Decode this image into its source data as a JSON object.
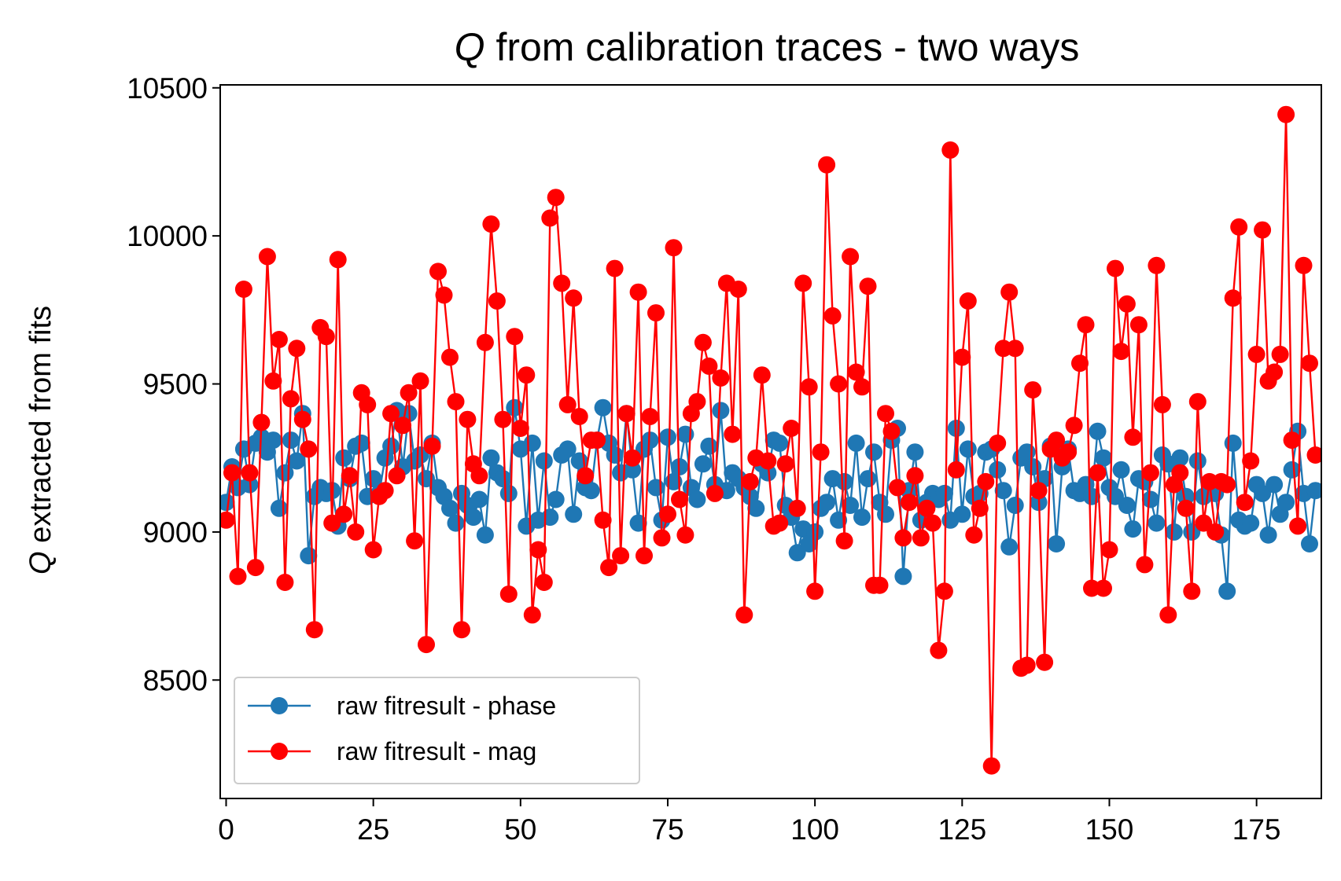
{
  "chart_data": {
    "type": "line",
    "title_var": "Q",
    "title": " from calibration traces - two ways",
    "ylabel_var": "Q",
    "ylabel": " extracted from fits",
    "xlabel": "",
    "xlim": [
      -1,
      186
    ],
    "ylim": [
      8100,
      10510
    ],
    "xticks": [
      0,
      25,
      50,
      75,
      100,
      125,
      150,
      175
    ],
    "yticks": [
      8500,
      9000,
      9500,
      10000,
      10500
    ],
    "grid": false,
    "legend_position": "lower left",
    "x": [
      0,
      1,
      2,
      3,
      4,
      5,
      6,
      7,
      8,
      9,
      10,
      11,
      12,
      13,
      14,
      15,
      16,
      17,
      18,
      19,
      20,
      21,
      22,
      23,
      24,
      25,
      26,
      27,
      28,
      29,
      30,
      31,
      32,
      33,
      34,
      35,
      36,
      37,
      38,
      39,
      40,
      41,
      42,
      43,
      44,
      45,
      46,
      47,
      48,
      49,
      50,
      51,
      52,
      53,
      54,
      55,
      56,
      57,
      58,
      59,
      60,
      61,
      62,
      63,
      64,
      65,
      66,
      67,
      68,
      69,
      70,
      71,
      72,
      73,
      74,
      75,
      76,
      77,
      78,
      79,
      80,
      81,
      82,
      83,
      84,
      85,
      86,
      87,
      88,
      89,
      90,
      91,
      92,
      93,
      94,
      95,
      96,
      97,
      98,
      99,
      100,
      101,
      102,
      103,
      104,
      105,
      106,
      107,
      108,
      109,
      110,
      111,
      112,
      113,
      114,
      115,
      116,
      117,
      118,
      119,
      120,
      121,
      122,
      123,
      124,
      125,
      126,
      127,
      128,
      129,
      130,
      131,
      132,
      133,
      134,
      135,
      136,
      137,
      138,
      139,
      140,
      141,
      142,
      143,
      144,
      145,
      146,
      147,
      148,
      149,
      150,
      151,
      152,
      153,
      154,
      155,
      156,
      157,
      158,
      159,
      160,
      161,
      162,
      163,
      164,
      165,
      166,
      167,
      168,
      169,
      170,
      171,
      172,
      173,
      174,
      175,
      176,
      177,
      178,
      179,
      180,
      181,
      182,
      183,
      184,
      185
    ],
    "series": [
      {
        "name": "raw fitresult - phase",
        "color": "#1f77b4",
        "values": [
          9100,
          9220,
          9150,
          9280,
          9160,
          9300,
          9320,
          9270,
          9310,
          9080,
          9200,
          9310,
          9240,
          9400,
          8920,
          9120,
          9150,
          9130,
          9140,
          9020,
          9250,
          9180,
          9290,
          9300,
          9120,
          9180,
          9130,
          9250,
          9290,
          9410,
          9220,
          9400,
          9240,
          9260,
          9180,
          9300,
          9150,
          9120,
          9080,
          9030,
          9130,
          9090,
          9050,
          9110,
          8990,
          9250,
          9200,
          9180,
          9130,
          9420,
          9280,
          9020,
          9300,
          9040,
          9240,
          9050,
          9110,
          9260,
          9280,
          9060,
          9240,
          9150,
          9140,
          9310,
          9420,
          9300,
          9260,
          9200,
          9400,
          9210,
          9030,
          9280,
          9310,
          9150,
          9040,
          9320,
          9170,
          9220,
          9330,
          9150,
          9110,
          9230,
          9290,
          9160,
          9410,
          9140,
          9200,
          9180,
          9150,
          9120,
          9080,
          9230,
          9200,
          9310,
          9300,
          9090,
          9050,
          8930,
          9010,
          8960,
          9000,
          9080,
          9100,
          9180,
          9040,
          9170,
          9090,
          9300,
          9050,
          9180,
          9270,
          9100,
          9060,
          9310,
          9350,
          8850,
          9140,
          9270,
          9040,
          9100,
          9130,
          9110,
          9130,
          9040,
          9350,
          9060,
          9280,
          9120,
          9130,
          9270,
          9280,
          9210,
          9140,
          8950,
          9090,
          9250,
          9270,
          9220,
          9100,
          9180,
          9290,
          8960,
          9220,
          9280,
          9140,
          9130,
          9160,
          9120,
          9340,
          9250,
          9150,
          9120,
          9210,
          9090,
          9010,
          9180,
          9170,
          9110,
          9030,
          9260,
          9230,
          9000,
          9250,
          9120,
          9000,
          9240,
          9120,
          9140,
          9130,
          8990,
          8800,
          9300,
          9040,
          9020,
          9030,
          9160,
          9130,
          8990,
          9160,
          9060,
          9100,
          9210,
          9340,
          9130,
          8960,
          9140
        ]
      },
      {
        "name": "raw fitresult - mag",
        "color": "#ff0000",
        "values": [
          9040,
          9200,
          8850,
          9820,
          9200,
          8880,
          9370,
          9930,
          9510,
          9650,
          8830,
          9450,
          9620,
          9380,
          9280,
          8670,
          9690,
          9660,
          9030,
          9920,
          9060,
          9190,
          9000,
          9470,
          9430,
          8940,
          9120,
          9140,
          9400,
          9190,
          9360,
          9470,
          8970,
          9510,
          8620,
          9290,
          9880,
          9800,
          9590,
          9440,
          8670,
          9380,
          9230,
          9190,
          9640,
          10040,
          9780,
          9380,
          8790,
          9660,
          9350,
          9530,
          8720,
          8940,
          8830,
          10060,
          10130,
          9840,
          9430,
          9790,
          9390,
          9190,
          9310,
          9310,
          9040,
          8880,
          9890,
          8920,
          9400,
          9250,
          9810,
          8920,
          9390,
          9740,
          8980,
          9060,
          9960,
          9110,
          8990,
          9400,
          9440,
          9640,
          9560,
          9130,
          9520,
          9840,
          9330,
          9820,
          8720,
          9170,
          9250,
          9530,
          9240,
          9020,
          9030,
          9230,
          9350,
          9080,
          9840,
          9490,
          8800,
          9270,
          10240,
          9730,
          9500,
          8970,
          9930,
          9540,
          9490,
          9830,
          8820,
          8820,
          9400,
          9340,
          9150,
          8980,
          9100,
          9190,
          8980,
          9080,
          9030,
          8600,
          8800,
          10290,
          9210,
          9590,
          9780,
          8990,
          9080,
          9170,
          8210,
          9300,
          9620,
          9810,
          9620,
          8540,
          8550,
          9480,
          9140,
          8560,
          9280,
          9310,
          9250,
          9270,
          9360,
          9570,
          9700,
          8810,
          9200,
          8810,
          8940,
          9890,
          9610,
          9770,
          9320,
          9700,
          8890,
          9200,
          9900,
          9430,
          8720,
          9160,
          9200,
          9080,
          8800,
          9440,
          9030,
          9170,
          9000,
          9170,
          9160,
          9790,
          10030,
          9100,
          9240,
          9600,
          10020,
          9510,
          9540,
          9600,
          10410,
          9310,
          9020,
          9900,
          9570,
          9260
        ]
      }
    ]
  }
}
